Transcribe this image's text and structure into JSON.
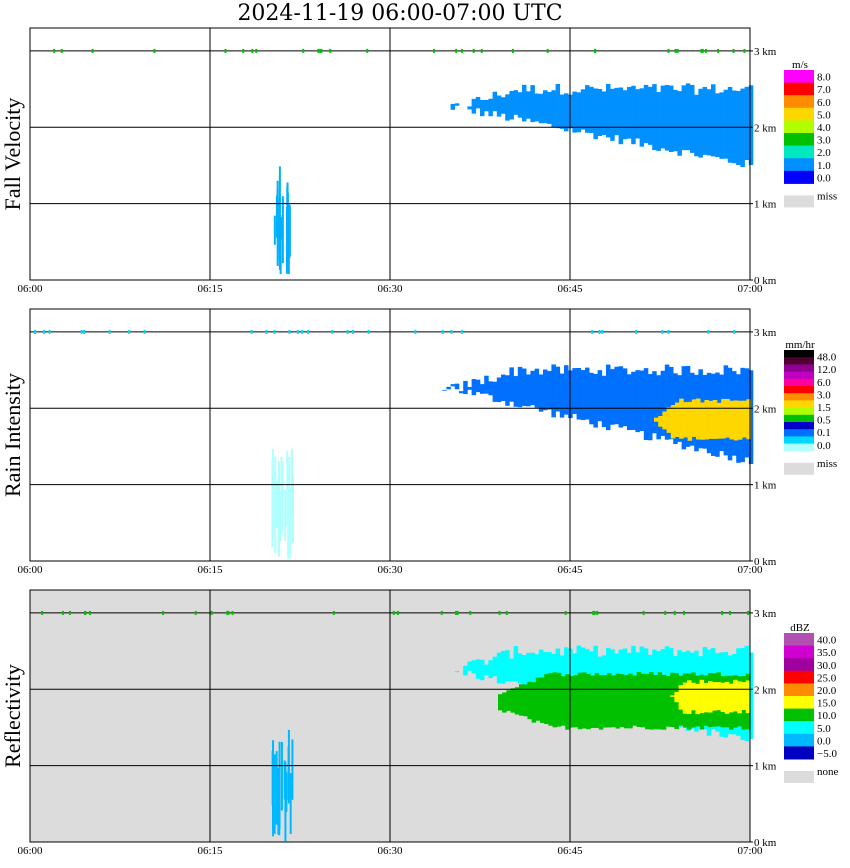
{
  "title": "2024-11-19   06:00-07:00 UTC",
  "time_ticks": [
    "06:00",
    "06:15",
    "06:30",
    "06:45",
    "07:00"
  ],
  "height_ticks": [
    "0 km",
    "1 km",
    "2 km",
    "3 km"
  ],
  "chart_data": [
    {
      "type": "heatmap",
      "ylabel": "Fall Velocity",
      "xlim": [
        "06:00",
        "07:00"
      ],
      "ylim_km": [
        0,
        3.3
      ],
      "grid": true,
      "background": "#ffffff",
      "colorbar": {
        "unit": "m/s",
        "labels": [
          "8.0",
          "7.0",
          "6.0",
          "5.0",
          "4.0",
          "3.0",
          "2.0",
          "1.0",
          "0.0"
        ],
        "colors": [
          "#ff00ff",
          "#ff0000",
          "#ff8c00",
          "#ffd700",
          "#b0ff00",
          "#00c000",
          "#00e8c0",
          "#0090ff",
          "#0000ff"
        ],
        "missing_label": "miss",
        "missing_color": "#dcdcdc"
      },
      "features": [
        {
          "kind": "layer",
          "time_start": "06:34",
          "time_end": "07:00",
          "base_km_start": 2.3,
          "base_km_end": 1.5,
          "top_km": 2.5,
          "color": "#0090ff"
        },
        {
          "kind": "streak",
          "time_center": "06:21",
          "base_km": 0.0,
          "top_km": 1.5,
          "color": "#00b0ff"
        }
      ]
    },
    {
      "type": "heatmap",
      "ylabel": "Rain Intensity",
      "xlim": [
        "06:00",
        "07:00"
      ],
      "ylim_km": [
        0,
        3.3
      ],
      "grid": true,
      "background": "#ffffff",
      "colorbar": {
        "unit": "mm/hr",
        "labels": [
          "48.0",
          "12.0",
          "6.0",
          "3.0",
          "1.5",
          "0.5",
          "0.1",
          "0.0"
        ],
        "colors": [
          "#000000",
          "#500030",
          "#900090",
          "#c000c0",
          "#ff00a0",
          "#ff0000",
          "#ff8c00",
          "#ffd700",
          "#b0ff00",
          "#00c000",
          "#0000c8",
          "#0070ff",
          "#00d8ff",
          "#b0ffff"
        ],
        "missing_label": "miss",
        "missing_color": "#dcdcdc"
      },
      "features": [
        {
          "kind": "layer",
          "time_start": "06:34",
          "time_end": "07:00",
          "base_km_start": 2.3,
          "base_km_end": 1.3,
          "top_km": 2.5,
          "color": "#0070ff"
        },
        {
          "kind": "core",
          "time_start": "06:52",
          "time_end": "07:00",
          "base_km": 1.6,
          "top_km": 2.1,
          "color": "#ffd700"
        },
        {
          "kind": "streak",
          "time_center": "06:21",
          "base_km": 0.0,
          "top_km": 1.5,
          "color": "#b0ffff"
        }
      ]
    },
    {
      "type": "heatmap",
      "ylabel": "Reflectivity",
      "xlim": [
        "06:00",
        "07:00"
      ],
      "ylim_km": [
        0,
        3.3
      ],
      "grid": true,
      "background": "#dcdcdc",
      "colorbar": {
        "unit": "dBZ",
        "labels": [
          "40.0",
          "35.0",
          "30.0",
          "25.0",
          "20.0",
          "15.0",
          "10.0",
          "5.0",
          "0.0",
          "−5.0"
        ],
        "colors": [
          "#b050b0",
          "#d000d0",
          "#a000a0",
          "#ff0000",
          "#ff8c00",
          "#ffff00",
          "#00c000",
          "#00ffff",
          "#00b8ff",
          "#0000c0"
        ],
        "missing_label": "none",
        "missing_color": "#dcdcdc"
      },
      "features": [
        {
          "kind": "layer",
          "time_start": "06:34",
          "time_end": "07:00",
          "base_km_start": 2.3,
          "base_km_end": 1.3,
          "top_km": 2.5,
          "color": "#00ffff"
        },
        {
          "kind": "core",
          "time_start": "06:39",
          "time_end": "07:00",
          "base_km": 1.5,
          "top_km": 2.2,
          "color": "#00c000"
        },
        {
          "kind": "core",
          "time_start": "06:53",
          "time_end": "07:00",
          "base_km": 1.7,
          "top_km": 2.1,
          "color": "#ffff00"
        },
        {
          "kind": "streak",
          "time_center": "06:21",
          "base_km": 0.0,
          "top_km": 1.5,
          "color": "#00b8ff"
        }
      ]
    }
  ]
}
